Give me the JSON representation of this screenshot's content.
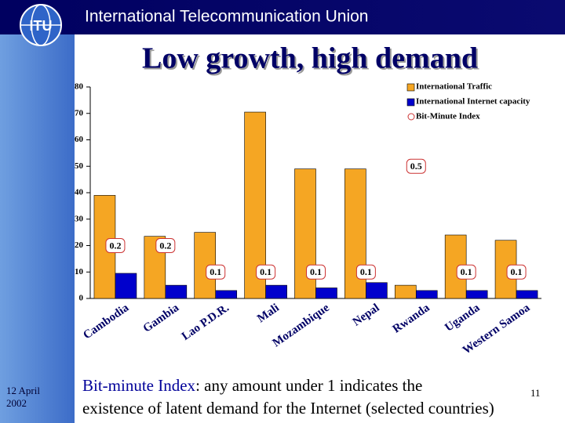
{
  "header": {
    "title": "International Telecommunication Union"
  },
  "chart_data": {
    "type": "bar",
    "title": "Low growth, high demand",
    "categories": [
      "Cambodia",
      "Gambia",
      "Lao P.D.R.",
      "Mali",
      "Mozambique",
      "Nepal",
      "Rwanda",
      "Uganda",
      "Western Samoa"
    ],
    "series": [
      {
        "name": "International Traffic",
        "color": "#f5a623",
        "values": [
          39,
          23.5,
          25,
          70.5,
          49,
          49,
          5,
          24,
          22
        ]
      },
      {
        "name": "International Internet capacity",
        "color": "#0000cc",
        "values": [
          9.5,
          5,
          3,
          5,
          4,
          6,
          3,
          3,
          3
        ]
      },
      {
        "name": "Bit-Minute Index",
        "color": "#cc3333",
        "axis": "y2",
        "values": [
          0.2,
          0.2,
          0.1,
          0.1,
          0.1,
          0.1,
          0.5,
          0.1,
          0.1
        ]
      }
    ],
    "ylim": [
      0,
      80
    ],
    "yticks": [
      0,
      10,
      20,
      30,
      40,
      50,
      60,
      70,
      80
    ],
    "y2lim": [
      0,
      0.8
    ],
    "legend": "upper right"
  },
  "footnote": {
    "term": "Bit-minute Index",
    "text1": ": any amount under 1 indicates the",
    "text2": "existence of latent demand for the Internet (selected countries)"
  },
  "date": {
    "line1": "12 April",
    "line2": "2002"
  },
  "page_number": "11"
}
